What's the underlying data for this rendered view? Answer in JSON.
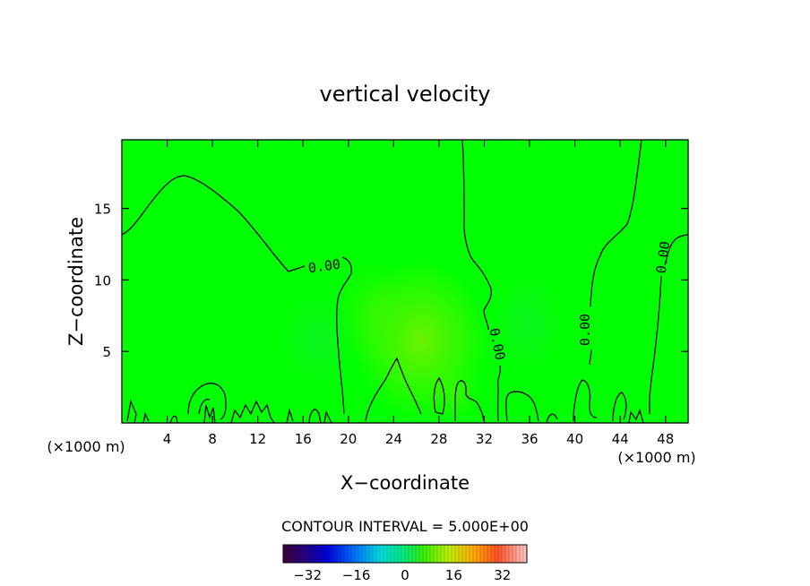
{
  "chart_data": {
    "type": "heatmap",
    "title": "vertical velocity",
    "xlabel": "X−coordinate",
    "ylabel": "Z−coordinate",
    "x_unit_label": "(×1000 m)",
    "y_unit_label": "(×1000 m)",
    "xlim": [
      0,
      50
    ],
    "ylim": [
      0,
      19.8
    ],
    "x_ticks": [
      4,
      8,
      12,
      16,
      20,
      24,
      28,
      32,
      36,
      40,
      44,
      48
    ],
    "y_ticks": [
      5,
      10,
      15
    ],
    "contour_interval_text": "CONTOUR INTERVAL = 5.000E+00",
    "contour_labels": [
      "0.00",
      "0.00",
      "0.00",
      "0.00"
    ],
    "colorbar": {
      "min": -40,
      "max": 40,
      "ticks": [
        -32,
        -16,
        0,
        16,
        32
      ],
      "tick_labels": [
        "−32",
        "−16",
        "0",
        "16",
        "32"
      ]
    },
    "field_value_range": [
      -2,
      3
    ],
    "background_color": "#00ff00"
  }
}
